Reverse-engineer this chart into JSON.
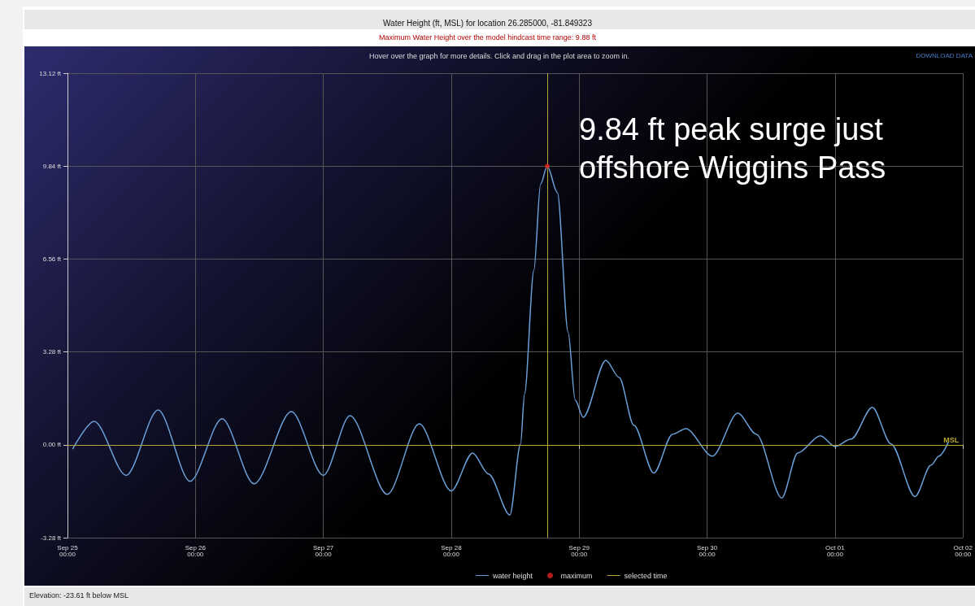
{
  "chart_data": {
    "type": "line",
    "title": "Water Height (ft, MSL) for location 26.285000, -81.849323",
    "subtitle": "Maximum Water Height over the model hindcast time range: 9.88 ft",
    "annotations": [
      "9.84 ft peak surge just offshore Wiggins Pass",
      "Hover over the graph for more details. Click and drag in the plot area to zoom in.",
      "DOWNLOAD DATA",
      "Elevation: -23.61 ft below MSL"
    ],
    "series": [
      {
        "name": "water height",
        "color": "#6a9fd8",
        "x": [
          "--09-25T01:00",
          "--09-25T05:00",
          "--09-25T11:00",
          "--09-25T17:00",
          "--09-25T23:00",
          "--09-26T05:00",
          "--09-26T11:00",
          "--09-26T18:00",
          "--09-27T00:00",
          "--09-27T05:00",
          "--09-27T12:00",
          "--09-27T18:00",
          "--09-28T00:00",
          "--09-28T04:00",
          "--09-28T07:00",
          "--09-28T11:00",
          "--09-28T13:00",
          "--09-28T13:45",
          "--09-28T15:30",
          "--09-28T16:45",
          "--09-28T18:00",
          "--09-28T19:55",
          "--09-28T21:55",
          "--09-28T23:15",
          "--09-29T00:45",
          "--09-29T05:00",
          "--09-29T07:30",
          "--09-29T10:15",
          "--09-29T14:00",
          "--09-29T17:30",
          "--09-29T20:00",
          "--09-30T01:00",
          "--09-30T05:45",
          "--09-30T09:15",
          "--09-30T14:00",
          "--09-30T17:00",
          "--09-30T21:15",
          "--10-01T00:00",
          "--10-01T03:00",
          "--10-01T07:00",
          "--10-01T10:30",
          "--10-01T15:00",
          "--10-01T18:00",
          "--10-01T19:30",
          "--10-01T21:15"
        ],
        "values": [
          -0.14,
          0.83,
          -1.08,
          1.23,
          -1.29,
          0.92,
          -1.38,
          1.17,
          -1.08,
          1.03,
          -1.75,
          0.74,
          -1.63,
          -0.29,
          -1.03,
          -2.48,
          0.03,
          1.8,
          6.16,
          9.2,
          9.84,
          8.9,
          3.98,
          1.58,
          0.97,
          2.98,
          2.38,
          0.69,
          -1.0,
          0.37,
          0.57,
          -0.4,
          1.12,
          0.37,
          -1.88,
          -0.29,
          0.32,
          -0.06,
          0.2,
          1.32,
          0.03,
          -1.83,
          -0.72,
          -0.4,
          0.09
        ]
      },
      {
        "name": "maximum",
        "type": "scatter",
        "color": "#e02020",
        "x": [
          "--09-28T18:00"
        ],
        "values": [
          9.84
        ]
      }
    ],
    "xlim": [
      "--09-25T00:00",
      "--10-02T00:00"
    ],
    "xticks": [
      {
        "value": "--09-25T00:00",
        "label": "Sep 25\n00:00"
      },
      {
        "value": "--09-26T00:00",
        "label": "Sep 26\n00:00"
      },
      {
        "value": "--09-27T00:00",
        "label": "Sep 27\n00:00"
      },
      {
        "value": "--09-28T00:00",
        "label": "Sep 28\n00:00"
      },
      {
        "value": "--09-29T00:00",
        "label": "Sep 29\n00:00"
      },
      {
        "value": "--09-30T00:00",
        "label": "Sep 30\n00:00"
      },
      {
        "value": "--10-01T00:00",
        "label": "Oct 01\n00:00"
      },
      {
        "value": "--10-02T00:00",
        "label": "Oct 02\n00:00"
      }
    ],
    "ylim": [
      -3.28,
      13.12
    ],
    "yticks": [
      {
        "value": -3.28,
        "label": "-3.28 ft"
      },
      {
        "value": 0,
        "label": "0.00 ft"
      },
      {
        "value": 3.28,
        "label": "3.28 ft"
      },
      {
        "value": 6.56,
        "label": "6.56 ft"
      },
      {
        "value": 9.84,
        "label": "9.84 ft"
      },
      {
        "value": 13.12,
        "label": "13.12 ft"
      }
    ],
    "ref_lines": [
      {
        "axis": "y",
        "value": 0,
        "label": "MSL",
        "color": "#b8a634"
      },
      {
        "axis": "x",
        "value": "--09-28T18:00",
        "label": "selected time",
        "color": "#b8a634"
      }
    ],
    "grid": true,
    "legend": "bottom",
    "marker": "none",
    "line_style": "solid"
  }
}
